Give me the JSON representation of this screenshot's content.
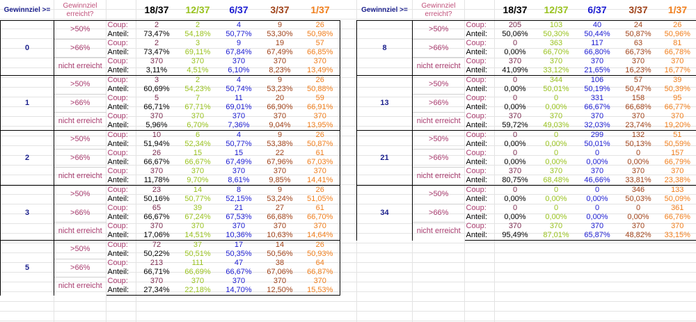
{
  "headers": {
    "goal_label": "Gewinnziel >=",
    "reached_label": "Gewinnziel erreicht?",
    "columns": [
      "18/37",
      "12/37",
      "6/37",
      "3/37",
      "1/37"
    ]
  },
  "row_labels": {
    "coup": "Coup:",
    "anteil": "Anteil:"
  },
  "colors": {
    "c0": "#000000",
    "c1": "#99c21f",
    "c2": "#1b1bd1",
    "c3": "#a0431a",
    "c4": "#f07e1c"
  },
  "left_groups": [
    {
      "goal": "0",
      "rows": [
        {
          "threshold": ">50%",
          "coup": [
            "2",
            "2",
            "4",
            "9",
            "26"
          ],
          "anteil": [
            "73,47%",
            "54,18%",
            "50,77%",
            "53,30%",
            "50,98%"
          ]
        },
        {
          "threshold": ">66%",
          "coup": [
            "2",
            "3",
            "9",
            "19",
            "57"
          ],
          "anteil": [
            "73,47%",
            "69,11%",
            "67,84%",
            "67,49%",
            "66,85%"
          ]
        },
        {
          "threshold": "nicht erreicht",
          "coup": [
            "370",
            "370",
            "370",
            "370",
            "370"
          ],
          "anteil": [
            "3,11%",
            "4,51%",
            "6,10%",
            "8,23%",
            "13,49%"
          ]
        }
      ]
    },
    {
      "goal": "1",
      "rows": [
        {
          "threshold": ">50%",
          "coup": [
            "3",
            "2",
            "4",
            "9",
            "26"
          ],
          "anteil": [
            "60,69%",
            "54,23%",
            "50,74%",
            "53,23%",
            "50,88%"
          ]
        },
        {
          "threshold": ">66%",
          "coup": [
            "5",
            "7",
            "11",
            "20",
            "59"
          ],
          "anteil": [
            "66,71%",
            "67,71%",
            "69,01%",
            "66,90%",
            "66,91%"
          ]
        },
        {
          "threshold": "nicht erreicht",
          "coup": [
            "370",
            "370",
            "370",
            "370",
            "370"
          ],
          "anteil": [
            "5,96%",
            "6,70%",
            "7,36%",
            "9,04%",
            "13,95%"
          ]
        }
      ]
    },
    {
      "goal": "2",
      "rows": [
        {
          "threshold": ">50%",
          "coup": [
            "10",
            "6",
            "4",
            "9",
            "26"
          ],
          "anteil": [
            "51,94%",
            "52,34%",
            "50,77%",
            "53,38%",
            "50,87%"
          ]
        },
        {
          "threshold": ">66%",
          "coup": [
            "26",
            "15",
            "15",
            "22",
            "61"
          ],
          "anteil": [
            "66,67%",
            "66,67%",
            "67,49%",
            "67,96%",
            "67,03%"
          ]
        },
        {
          "threshold": "nicht erreicht",
          "coup": [
            "370",
            "370",
            "370",
            "370",
            "370"
          ],
          "anteil": [
            "11,78%",
            "9,70%",
            "8,61%",
            "9,85%",
            "14,41%"
          ]
        }
      ]
    },
    {
      "goal": "3",
      "rows": [
        {
          "threshold": ">50%",
          "coup": [
            "23",
            "14",
            "8",
            "9",
            "26"
          ],
          "anteil": [
            "50,16%",
            "50,77%",
            "52,15%",
            "53,24%",
            "51,05%"
          ]
        },
        {
          "threshold": ">66%",
          "coup": [
            "65",
            "39",
            "21",
            "27",
            "61"
          ],
          "anteil": [
            "66,67%",
            "67,24%",
            "67,53%",
            "66,68%",
            "66,70%"
          ]
        },
        {
          "threshold": "nicht erreicht",
          "coup": [
            "370",
            "370",
            "370",
            "370",
            "370"
          ],
          "anteil": [
            "17,06%",
            "14,51%",
            "10,36%",
            "10,63%",
            "14,64%"
          ]
        }
      ]
    },
    {
      "goal": "5",
      "rows": [
        {
          "threshold": ">50%",
          "coup": [
            "72",
            "37",
            "17",
            "14",
            "26"
          ],
          "anteil": [
            "50,22%",
            "50,51%",
            "50,35%",
            "50,56%",
            "50,93%"
          ]
        },
        {
          "threshold": ">66%",
          "coup": [
            "213",
            "111",
            "47",
            "38",
            "64"
          ],
          "anteil": [
            "66,71%",
            "66,69%",
            "66,67%",
            "67,06%",
            "66,87%"
          ]
        },
        {
          "threshold": "nicht erreicht",
          "coup": [
            "370",
            "370",
            "370",
            "370",
            "370"
          ],
          "anteil": [
            "27,34%",
            "22,18%",
            "14,70%",
            "12,50%",
            "15,53%"
          ]
        }
      ]
    }
  ],
  "right_groups": [
    {
      "goal": "8",
      "rows": [
        {
          "threshold": ">50%",
          "coup": [
            "205",
            "103",
            "40",
            "24",
            "26"
          ],
          "anteil": [
            "50,06%",
            "50,30%",
            "50,44%",
            "50,87%",
            "50,96%"
          ]
        },
        {
          "threshold": ">66%",
          "coup": [
            "0",
            "363",
            "117",
            "63",
            "81"
          ],
          "anteil": [
            "0,00%",
            "66,70%",
            "66,80%",
            "66,73%",
            "66,78%"
          ]
        },
        {
          "threshold": "nicht erreicht",
          "coup": [
            "370",
            "370",
            "370",
            "370",
            "370"
          ],
          "anteil": [
            "41,09%",
            "33,12%",
            "21,65%",
            "16,23%",
            "16,77%"
          ]
        }
      ]
    },
    {
      "goal": "13",
      "rows": [
        {
          "threshold": ">50%",
          "coup": [
            "0",
            "344",
            "106",
            "57",
            "39"
          ],
          "anteil": [
            "0,00%",
            "50,01%",
            "50,19%",
            "50,47%",
            "50,39%"
          ]
        },
        {
          "threshold": ">66%",
          "coup": [
            "0",
            "0",
            "331",
            "158",
            "95"
          ],
          "anteil": [
            "0,00%",
            "0,00%",
            "66,67%",
            "66,68%",
            "66,77%"
          ]
        },
        {
          "threshold": "nicht erreicht",
          "coup": [
            "370",
            "370",
            "370",
            "370",
            "370"
          ],
          "anteil": [
            "59,72%",
            "49,03%",
            "32,03%",
            "23,74%",
            "19,20%"
          ]
        }
      ]
    },
    {
      "goal": "21",
      "rows": [
        {
          "threshold": ">50%",
          "coup": [
            "0",
            "0",
            "299",
            "132",
            "51"
          ],
          "anteil": [
            "0,00%",
            "0,00%",
            "50,01%",
            "50,13%",
            "50,59%"
          ]
        },
        {
          "threshold": ">66%",
          "coup": [
            "0",
            "0",
            "0",
            "0",
            "157"
          ],
          "anteil": [
            "0,00%",
            "0,00%",
            "0,00%",
            "0,00%",
            "66,79%"
          ]
        },
        {
          "threshold": "nicht erreicht",
          "coup": [
            "370",
            "370",
            "370",
            "370",
            "370"
          ],
          "anteil": [
            "80,75%",
            "68,48%",
            "46,66%",
            "33,81%",
            "23,38%"
          ]
        }
      ]
    },
    {
      "goal": "34",
      "rows": [
        {
          "threshold": ">50%",
          "coup": [
            "0",
            "0",
            "0",
            "346",
            "133"
          ],
          "anteil": [
            "0,00%",
            "0,00%",
            "0,00%",
            "50,03%",
            "50,09%"
          ]
        },
        {
          "threshold": ">66%",
          "coup": [
            "0",
            "0",
            "0",
            "0",
            "361"
          ],
          "anteil": [
            "0,00%",
            "0,00%",
            "0,00%",
            "0,00%",
            "66,76%"
          ]
        },
        {
          "threshold": "nicht erreicht",
          "coup": [
            "370",
            "370",
            "370",
            "370",
            "370"
          ],
          "anteil": [
            "95,49%",
            "87,01%",
            "65,87%",
            "48,82%",
            "33,15%"
          ]
        }
      ]
    }
  ]
}
